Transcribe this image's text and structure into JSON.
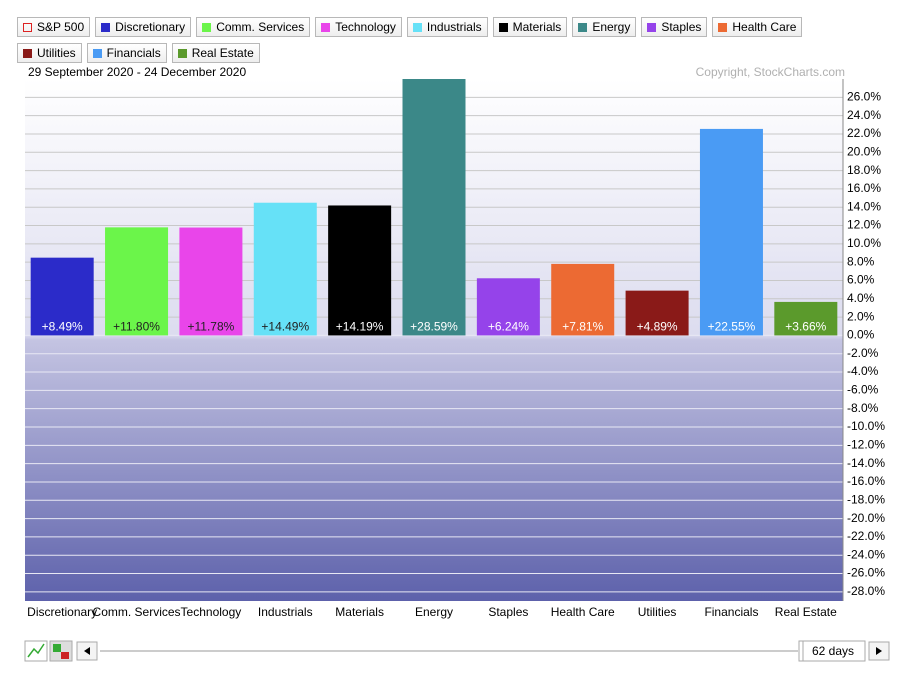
{
  "chart_data": {
    "type": "bar",
    "legend": [
      {
        "name": "S&P 500",
        "color": "#dd2222",
        "hollow": true
      },
      {
        "name": "Discretionary",
        "color": "#2b2bc9"
      },
      {
        "name": "Comm. Services",
        "color": "#6bf54a"
      },
      {
        "name": "Technology",
        "color": "#e945ea"
      },
      {
        "name": "Industrials",
        "color": "#66e1f7"
      },
      {
        "name": "Materials",
        "color": "#000000"
      },
      {
        "name": "Energy",
        "color": "#3b8888"
      },
      {
        "name": "Staples",
        "color": "#9543ea"
      },
      {
        "name": "Health Care",
        "color": "#ec6a33"
      },
      {
        "name": "Utilities",
        "color": "#8a1a18"
      },
      {
        "name": "Financials",
        "color": "#4a9bf4"
      },
      {
        "name": "Real Estate",
        "color": "#5b9a2c"
      }
    ],
    "date_range": "29 September 2020 - 24 December 2020",
    "copyright": "Copyright, StockCharts.com",
    "categories": [
      "Discretionary",
      "Comm. Services",
      "Technology",
      "Industrials",
      "Materials",
      "Energy",
      "Staples",
      "Health Care",
      "Utilities",
      "Financials",
      "Real Estate"
    ],
    "values": [
      8.49,
      11.8,
      11.78,
      14.49,
      14.19,
      28.59,
      6.24,
      7.81,
      4.89,
      22.55,
      3.66
    ],
    "value_labels": [
      "+8.49%",
      "+11.80%",
      "+11.78%",
      "+14.49%",
      "+14.19%",
      "+28.59%",
      "+6.24%",
      "+7.81%",
      "+4.89%",
      "+22.55%",
      "+3.66%"
    ],
    "colors": [
      "#2b2bc9",
      "#6bf54a",
      "#e945ea",
      "#66e1f7",
      "#000000",
      "#3b8888",
      "#9543ea",
      "#ec6a33",
      "#8a1a18",
      "#4a9bf4",
      "#5b9a2c"
    ],
    "label_colors": [
      "#ffffff",
      "#222222",
      "#222222",
      "#222222",
      "#ffffff",
      "#ffffff",
      "#ffffff",
      "#ffffff",
      "#ffffff",
      "#ffffff",
      "#ffffff"
    ],
    "ylim": [
      -29,
      28
    ],
    "yticks": [
      {
        "value": 26,
        "label": "26.0%"
      },
      {
        "value": 24,
        "label": "24.0%"
      },
      {
        "value": 22,
        "label": "22.0%"
      },
      {
        "value": 20,
        "label": "20.0%"
      },
      {
        "value": 18,
        "label": "18.0%"
      },
      {
        "value": 16,
        "label": "16.0%"
      },
      {
        "value": 14,
        "label": "14.0%"
      },
      {
        "value": 12,
        "label": "12.0%"
      },
      {
        "value": 10,
        "label": "10.0%"
      },
      {
        "value": 8,
        "label": "8.0%"
      },
      {
        "value": 6,
        "label": "6.0%"
      },
      {
        "value": 4,
        "label": "4.0%"
      },
      {
        "value": 2,
        "label": "2.0%"
      },
      {
        "value": 0,
        "label": "0.0%"
      },
      {
        "value": -2,
        "label": "-2.0%"
      },
      {
        "value": -4,
        "label": "-4.0%"
      },
      {
        "value": -6,
        "label": "-6.0%"
      },
      {
        "value": -8,
        "label": "-8.0%"
      },
      {
        "value": -10,
        "label": "-10.0%"
      },
      {
        "value": -12,
        "label": "-12.0%"
      },
      {
        "value": -14,
        "label": "-14.0%"
      },
      {
        "value": -16,
        "label": "-16.0%"
      },
      {
        "value": -18,
        "label": "-18.0%"
      },
      {
        "value": -20,
        "label": "-20.0%"
      },
      {
        "value": -22,
        "label": "-22.0%"
      },
      {
        "value": -24,
        "label": "-24.0%"
      },
      {
        "value": -26,
        "label": "-26.0%"
      },
      {
        "value": -28,
        "label": "-28.0%"
      }
    ],
    "grid": true,
    "period": "62 days"
  }
}
